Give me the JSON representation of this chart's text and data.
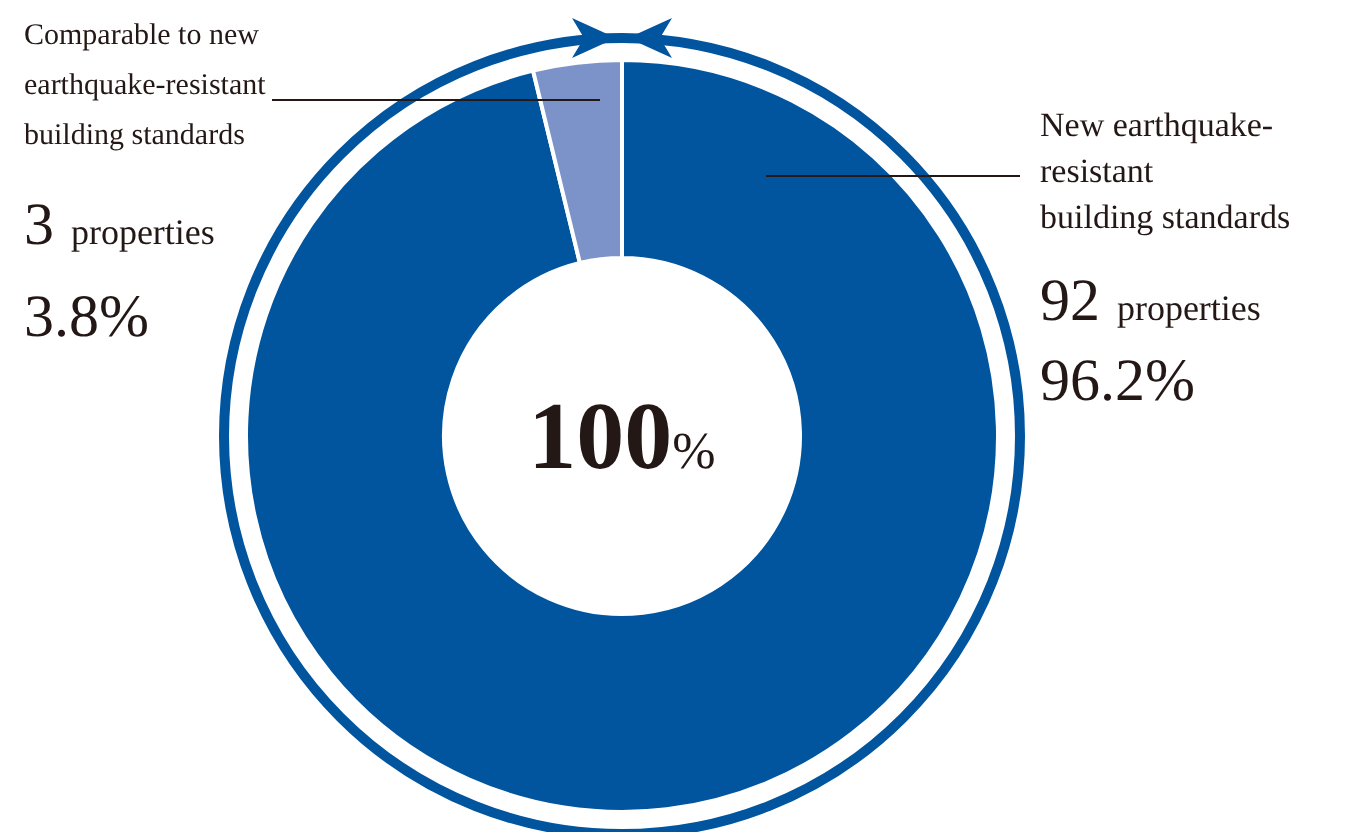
{
  "chart_data": {
    "type": "donut",
    "categories": [
      "New earthquake-\nresistant\nbuilding standards",
      "Comparable to new\nearthquake-resistant\nbuilding standards"
    ],
    "values": [
      96.2,
      3.8
    ],
    "colors": [
      "#00559e",
      "#7b93c8"
    ],
    "annotations": [
      "92 properties",
      "96.2%",
      "3 properties",
      "3.8%",
      "100%"
    ]
  }
}
